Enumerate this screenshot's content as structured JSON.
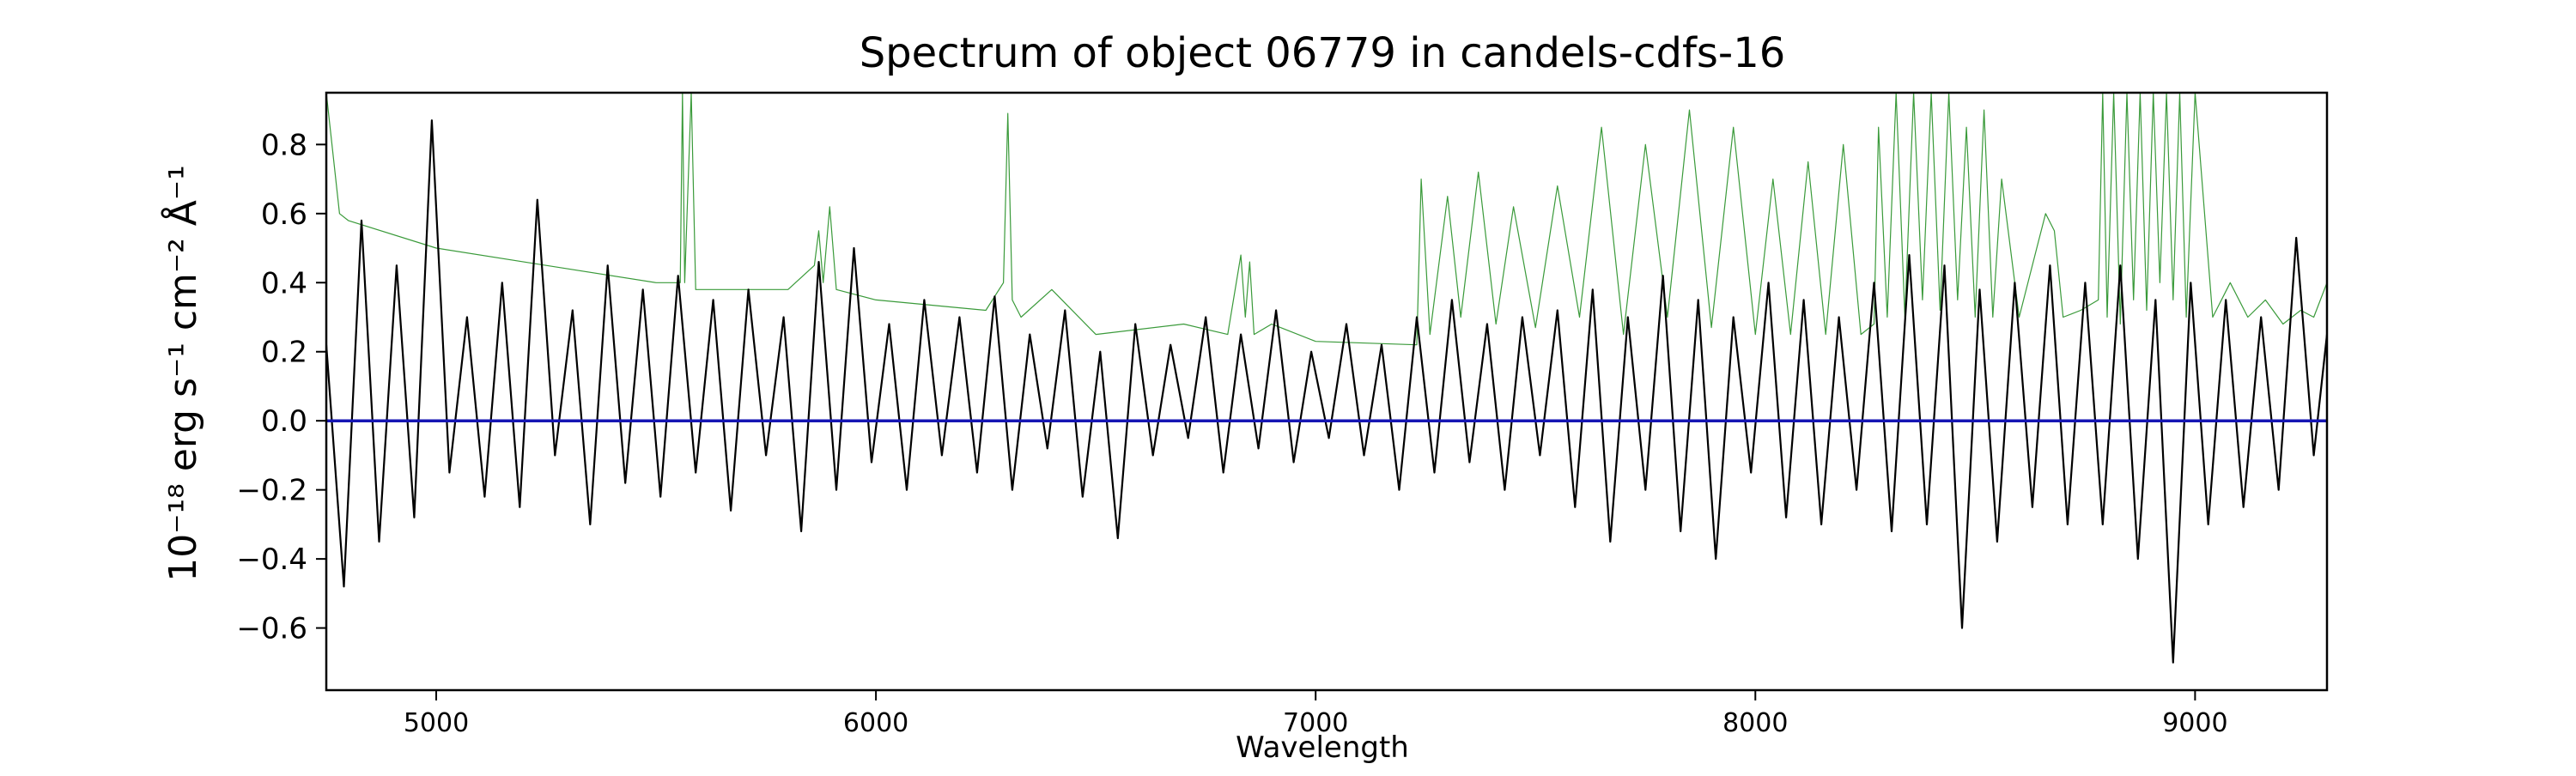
{
  "chart_data": {
    "type": "line",
    "title": "Spectrum of object 06779 in candels-cdfs-16",
    "xlabel": "Wavelength",
    "ylabel": "10⁻¹⁸ erg s⁻¹ cm⁻² Å⁻¹",
    "xlim": [
      4750,
      9300
    ],
    "ylim": [
      -0.78,
      0.95
    ],
    "xticks": [
      5000,
      6000,
      7000,
      8000,
      9000
    ],
    "yticks": [
      -0.6,
      -0.4,
      -0.2,
      0.0,
      0.2,
      0.4,
      0.6,
      0.8
    ],
    "xtick_labels": [
      "5000",
      "6000",
      "7000",
      "8000",
      "9000"
    ],
    "ytick_labels": [
      "−0.6",
      "−0.4",
      "−0.2",
      "0.0",
      "0.2",
      "0.4",
      "0.6",
      "0.8"
    ],
    "grid": false,
    "series": [
      {
        "color": "#000000",
        "width": 2.2,
        "role": "flux",
        "x": [
          4750,
          4790,
          4830,
          4870,
          4910,
          4950,
          4990,
          5030,
          5070,
          5110,
          5150,
          5190,
          5230,
          5270,
          5310,
          5350,
          5390,
          5430,
          5470,
          5510,
          5550,
          5590,
          5630,
          5670,
          5710,
          5750,
          5790,
          5830,
          5870,
          5910,
          5950,
          5990,
          6030,
          6070,
          6110,
          6150,
          6190,
          6230,
          6270,
          6310,
          6350,
          6390,
          6430,
          6470,
          6510,
          6550,
          6590,
          6630,
          6670,
          6710,
          6750,
          6790,
          6830,
          6870,
          6910,
          6950,
          6990,
          7030,
          7070,
          7110,
          7150,
          7190,
          7230,
          7270,
          7310,
          7350,
          7390,
          7430,
          7470,
          7510,
          7550,
          7590,
          7630,
          7670,
          7710,
          7750,
          7790,
          7830,
          7870,
          7910,
          7950,
          7990,
          8030,
          8070,
          8110,
          8150,
          8190,
          8230,
          8270,
          8310,
          8350,
          8390,
          8430,
          8470,
          8510,
          8550,
          8590,
          8630,
          8670,
          8710,
          8750,
          8790,
          8830,
          8870,
          8910,
          8950,
          8990,
          9030,
          9070,
          9110,
          9150,
          9190,
          9230,
          9270,
          9300
        ],
        "y": [
          0.22,
          -0.48,
          0.58,
          -0.35,
          0.45,
          -0.28,
          0.87,
          -0.15,
          0.3,
          -0.22,
          0.4,
          -0.25,
          0.64,
          -0.1,
          0.32,
          -0.3,
          0.45,
          -0.18,
          0.38,
          -0.22,
          0.42,
          -0.15,
          0.35,
          -0.26,
          0.38,
          -0.1,
          0.3,
          -0.32,
          0.46,
          -0.2,
          0.5,
          -0.12,
          0.28,
          -0.2,
          0.35,
          -0.1,
          0.3,
          -0.15,
          0.36,
          -0.2,
          0.25,
          -0.08,
          0.32,
          -0.22,
          0.2,
          -0.34,
          0.28,
          -0.1,
          0.22,
          -0.05,
          0.3,
          -0.15,
          0.25,
          -0.08,
          0.32,
          -0.12,
          0.2,
          -0.05,
          0.28,
          -0.1,
          0.22,
          -0.2,
          0.3,
          -0.15,
          0.35,
          -0.12,
          0.28,
          -0.2,
          0.3,
          -0.1,
          0.32,
          -0.25,
          0.38,
          -0.35,
          0.3,
          -0.2,
          0.42,
          -0.32,
          0.35,
          -0.4,
          0.3,
          -0.15,
          0.4,
          -0.28,
          0.35,
          -0.3,
          0.3,
          -0.2,
          0.4,
          -0.32,
          0.48,
          -0.3,
          0.45,
          -0.6,
          0.38,
          -0.35,
          0.4,
          -0.25,
          0.45,
          -0.3,
          0.4,
          -0.3,
          0.45,
          -0.4,
          0.35,
          -0.7,
          0.4,
          -0.3,
          0.35,
          -0.25,
          0.3,
          -0.2,
          0.53,
          -0.1,
          0.25
        ]
      },
      {
        "color": "#3a9a3a",
        "width": 1.2,
        "role": "error",
        "x": [
          4750,
          4780,
          4800,
          5000,
          5250,
          5500,
          5555,
          5560,
          5565,
          5580,
          5590,
          5800,
          5860,
          5870,
          5880,
          5895,
          5910,
          6000,
          6250,
          6290,
          6300,
          6310,
          6330,
          6400,
          6500,
          6700,
          6800,
          6830,
          6840,
          6850,
          6860,
          6900,
          7000,
          7230,
          7240,
          7260,
          7300,
          7330,
          7370,
          7410,
          7450,
          7500,
          7550,
          7600,
          7650,
          7700,
          7750,
          7800,
          7850,
          7900,
          7950,
          8000,
          8040,
          8080,
          8120,
          8160,
          8200,
          8240,
          8270,
          8280,
          8300,
          8320,
          8340,
          8360,
          8380,
          8400,
          8420,
          8440,
          8460,
          8480,
          8500,
          8520,
          8540,
          8560,
          8600,
          8640,
          8660,
          8680,
          8700,
          8740,
          8780,
          8790,
          8800,
          8815,
          8830,
          8845,
          8860,
          8875,
          8890,
          8905,
          8920,
          8935,
          8950,
          8965,
          8980,
          9000,
          9040,
          9080,
          9120,
          9160,
          9200,
          9240,
          9270,
          9300
        ],
        "y": [
          0.95,
          0.6,
          0.58,
          0.5,
          0.45,
          0.4,
          0.4,
          0.95,
          0.4,
          0.95,
          0.38,
          0.38,
          0.45,
          0.55,
          0.4,
          0.62,
          0.38,
          0.35,
          0.32,
          0.4,
          0.89,
          0.35,
          0.3,
          0.38,
          0.25,
          0.28,
          0.25,
          0.48,
          0.3,
          0.46,
          0.25,
          0.28,
          0.23,
          0.22,
          0.7,
          0.25,
          0.65,
          0.3,
          0.72,
          0.28,
          0.62,
          0.27,
          0.68,
          0.3,
          0.85,
          0.25,
          0.8,
          0.3,
          0.9,
          0.27,
          0.85,
          0.25,
          0.7,
          0.25,
          0.75,
          0.25,
          0.8,
          0.25,
          0.28,
          0.85,
          0.3,
          0.95,
          0.3,
          0.95,
          0.35,
          0.95,
          0.32,
          0.95,
          0.35,
          0.85,
          0.3,
          0.9,
          0.3,
          0.7,
          0.3,
          0.5,
          0.6,
          0.55,
          0.3,
          0.32,
          0.35,
          0.95,
          0.3,
          0.95,
          0.28,
          0.95,
          0.35,
          0.95,
          0.32,
          0.95,
          0.4,
          0.95,
          0.35,
          0.95,
          0.3,
          0.95,
          0.3,
          0.4,
          0.3,
          0.35,
          0.28,
          0.32,
          0.3,
          0.4
        ]
      },
      {
        "color": "#1616b4",
        "width": 3.5,
        "role": "zero-level",
        "x": [
          4750,
          9300
        ],
        "y": [
          0,
          0
        ]
      }
    ]
  }
}
